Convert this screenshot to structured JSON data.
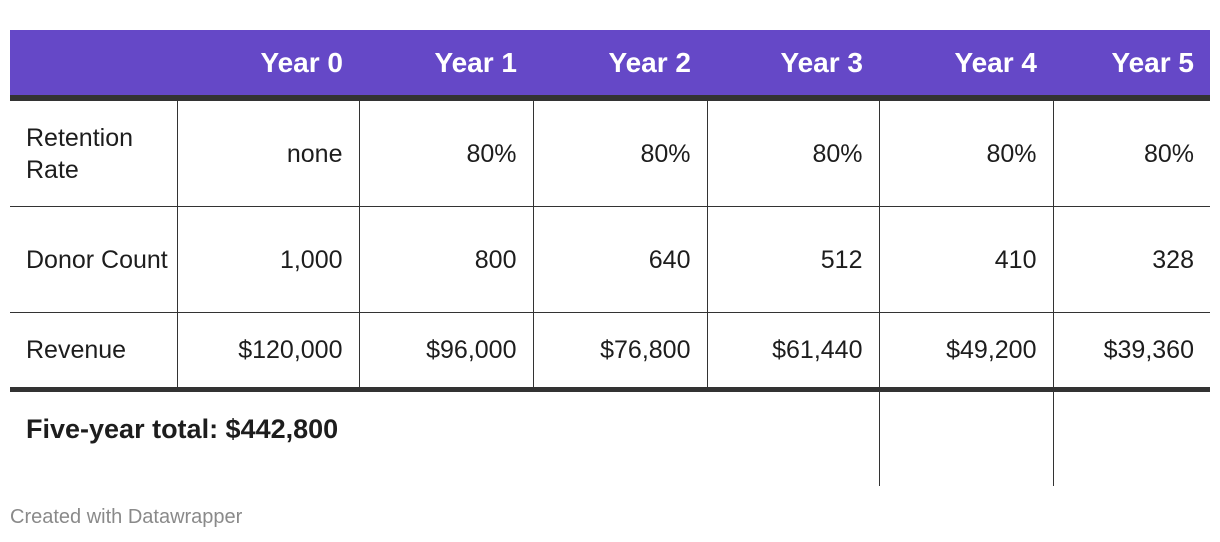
{
  "chart_data": {
    "type": "table",
    "columns": [
      "",
      "Year 0",
      "Year 1",
      "Year 2",
      "Year 3",
      "Year 4",
      "Year 5"
    ],
    "rows": [
      {
        "label": "Retention Rate",
        "values": [
          "none",
          "80%",
          "80%",
          "80%",
          "80%",
          "80%"
        ]
      },
      {
        "label": "Donor Count",
        "values": [
          "1,000",
          "800",
          "640",
          "512",
          "410",
          "328"
        ]
      },
      {
        "label": "Revenue",
        "values": [
          "$120,000",
          "$96,000",
          "$76,800",
          "$61,440",
          "$49,200",
          "$39,360"
        ]
      }
    ],
    "footer": "Five-year total: $442,800",
    "header_color": "#6548c7"
  },
  "credit": "Created with Datawrapper"
}
